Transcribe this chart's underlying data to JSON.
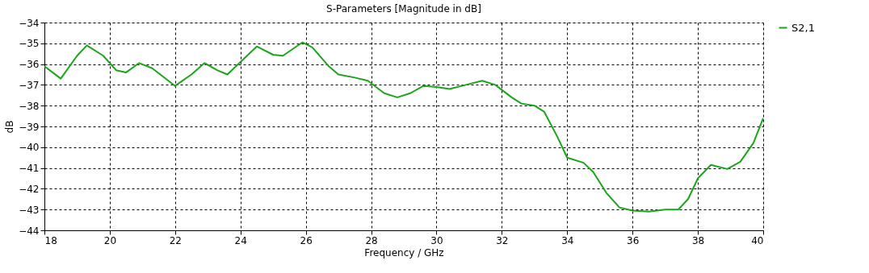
{
  "chart_data": {
    "type": "line",
    "title": "S-Parameters [Magnitude in dB]",
    "xlabel": "Frequency / GHz",
    "ylabel": "dB",
    "xlim": [
      18,
      40
    ],
    "xticks": [
      18,
      20,
      22,
      24,
      26,
      28,
      30,
      32,
      34,
      36,
      38,
      40
    ],
    "ylim": [
      -44,
      -34
    ],
    "yticks": [
      -44,
      -43,
      -42,
      -41,
      -40,
      -39,
      -38,
      -37,
      -36,
      -35,
      -34
    ],
    "grid": true,
    "legend": "top right",
    "line_style": "solid",
    "marker": "none",
    "series": [
      {
        "name": "S2,1",
        "color": "#1aa51a",
        "x": [
          18,
          18.5,
          19.0,
          19.3,
          19.8,
          20.2,
          20.5,
          20.9,
          21.3,
          22.0,
          22.5,
          22.9,
          23.3,
          23.6,
          24.0,
          24.5,
          25.0,
          25.3,
          25.9,
          26.2,
          26.7,
          27.0,
          27.5,
          27.9,
          28.4,
          28.8,
          29.2,
          29.6,
          30.0,
          30.4,
          30.9,
          31.4,
          31.8,
          32.3,
          32.6,
          33.0,
          33.3,
          33.7,
          34.0,
          34.5,
          34.8,
          35.2,
          35.6,
          36.0,
          36.5,
          37.0,
          37.4,
          37.7,
          38.0,
          38.4,
          38.9,
          39.3,
          39.7,
          40.0
        ],
        "values": [
          -36.1,
          -36.7,
          -35.6,
          -35.1,
          -35.6,
          -36.3,
          -36.4,
          -35.95,
          -36.2,
          -37.05,
          -36.5,
          -35.95,
          -36.3,
          -36.5,
          -35.9,
          -35.15,
          -35.55,
          -35.6,
          -34.95,
          -35.2,
          -36.1,
          -36.5,
          -36.65,
          -36.8,
          -37.4,
          -37.6,
          -37.4,
          -37.05,
          -37.1,
          -37.2,
          -37.0,
          -36.8,
          -37.0,
          -37.6,
          -37.9,
          -38.0,
          -38.3,
          -39.5,
          -40.5,
          -40.75,
          -41.2,
          -42.2,
          -42.9,
          -43.05,
          -43.1,
          -43.0,
          -43.0,
          -42.5,
          -41.5,
          -40.85,
          -41.05,
          -40.7,
          -39.8,
          -38.6
        ]
      }
    ]
  }
}
